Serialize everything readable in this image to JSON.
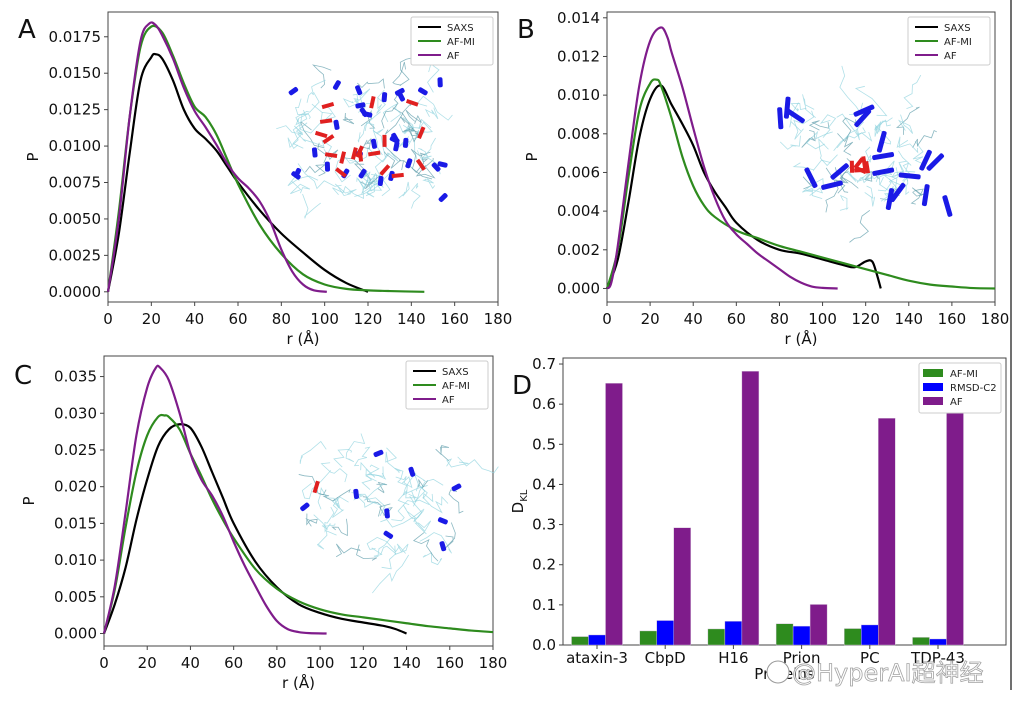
{
  "figure": {
    "watermark": "@HyperAI超神经",
    "colors": {
      "SAXS": "#000000",
      "AF-MI": "#2e8b1e",
      "RMSD-C2": "#0000ff",
      "AF": "#7f1c8b",
      "helix": "#1a1ae6",
      "sheet": "#e02020",
      "coil": "#8fd3de"
    }
  },
  "chart_data": [
    {
      "panel": "A",
      "type": "line",
      "xlabel": "r (Å)",
      "ylabel": "P",
      "xlim": [
        0,
        180
      ],
      "ylim": [
        -0.0007,
        0.0192
      ],
      "xticks": [
        0,
        20,
        40,
        60,
        80,
        100,
        120,
        140,
        160,
        180
      ],
      "yticks": [
        0.0,
        0.0025,
        0.005,
        0.0075,
        0.01,
        0.0125,
        0.015,
        0.0175
      ],
      "ytick_labels": [
        "0.0000",
        "0.0025",
        "0.0050",
        "0.0075",
        "0.0100",
        "0.0125",
        "0.0150",
        "0.0175"
      ],
      "legend": [
        "SAXS",
        "AF-MI",
        "AF"
      ],
      "legend_position": "top-right",
      "inset": "protein ensemble structure (compact, many helices and sheets)",
      "series": [
        {
          "name": "SAXS",
          "x": [
            0,
            5,
            10,
            15,
            20,
            22,
            25,
            30,
            35,
            40,
            45,
            50,
            55,
            60,
            70,
            80,
            90,
            100,
            110,
            120
          ],
          "y": [
            0,
            0.004,
            0.0095,
            0.0145,
            0.0161,
            0.0163,
            0.016,
            0.0145,
            0.0125,
            0.0112,
            0.0105,
            0.0097,
            0.0086,
            0.0075,
            0.0056,
            0.004,
            0.0027,
            0.0015,
            0.0006,
            0
          ]
        },
        {
          "name": "AF-MI",
          "x": [
            0,
            5,
            10,
            15,
            20,
            25,
            30,
            35,
            40,
            45,
            50,
            55,
            60,
            70,
            80,
            90,
            100,
            110,
            120,
            130,
            146
          ],
          "y": [
            0,
            0.0055,
            0.012,
            0.0168,
            0.0182,
            0.0178,
            0.0162,
            0.0143,
            0.0127,
            0.012,
            0.0108,
            0.0091,
            0.0074,
            0.0046,
            0.0026,
            0.0012,
            0.0005,
            0.0002,
            0.0001,
            5e-05,
            0
          ]
        },
        {
          "name": "AF",
          "x": [
            0,
            5,
            10,
            15,
            19,
            22,
            25,
            30,
            35,
            40,
            45,
            50,
            55,
            60,
            65,
            70,
            75,
            80,
            85,
            90,
            95,
            101
          ],
          "y": [
            0,
            0.005,
            0.012,
            0.0172,
            0.0184,
            0.0183,
            0.0176,
            0.016,
            0.014,
            0.0124,
            0.0113,
            0.0101,
            0.0088,
            0.0078,
            0.0071,
            0.0062,
            0.0048,
            0.0029,
            0.0014,
            0.0005,
            0.0001,
            0
          ]
        }
      ]
    },
    {
      "panel": "B",
      "type": "line",
      "xlabel": "r (Å)",
      "ylabel": "P",
      "xlim": [
        0,
        180
      ],
      "ylim": [
        -0.0007,
        0.0143
      ],
      "xticks": [
        0,
        20,
        40,
        60,
        80,
        100,
        120,
        140,
        160,
        180
      ],
      "yticks": [
        0.0,
        0.002,
        0.004,
        0.006,
        0.008,
        0.01,
        0.012,
        0.014
      ],
      "ytick_labels": [
        "0.000",
        "0.002",
        "0.004",
        "0.006",
        "0.008",
        "0.010",
        "0.012",
        "0.014"
      ],
      "legend": [
        "SAXS",
        "AF-MI",
        "AF"
      ],
      "legend_position": "top-right",
      "inset": "protein ensemble structure (folded core with dispersed helices)",
      "series": [
        {
          "name": "SAXS",
          "x": [
            0,
            5,
            10,
            15,
            20,
            25,
            30,
            35,
            40,
            45,
            50,
            55,
            60,
            70,
            80,
            90,
            100,
            110,
            115,
            120,
            123,
            125,
            127
          ],
          "y": [
            0,
            0.0015,
            0.0045,
            0.0078,
            0.0098,
            0.0105,
            0.0095,
            0.0085,
            0.0074,
            0.006,
            0.005,
            0.0042,
            0.0034,
            0.0025,
            0.002,
            0.0018,
            0.0015,
            0.0012,
            0.0011,
            0.0014,
            0.0014,
            0.0008,
            0
          ]
        },
        {
          "name": "AF-MI",
          "x": [
            0,
            5,
            10,
            15,
            20,
            23,
            25,
            30,
            35,
            40,
            45,
            50,
            60,
            70,
            80,
            90,
            100,
            110,
            120,
            130,
            140,
            150,
            160,
            170,
            180
          ],
          "y": [
            0,
            0.002,
            0.0058,
            0.0092,
            0.0106,
            0.0108,
            0.0105,
            0.0088,
            0.0068,
            0.0053,
            0.0043,
            0.0037,
            0.003,
            0.0026,
            0.0022,
            0.0019,
            0.0016,
            0.0013,
            0.001,
            0.0007,
            0.0004,
            0.0002,
            0.0001,
            2e-05,
            0
          ]
        },
        {
          "name": "AF",
          "x": [
            0,
            2,
            5,
            10,
            15,
            20,
            25,
            28,
            30,
            35,
            40,
            45,
            50,
            55,
            60,
            65,
            70,
            75,
            80,
            85,
            90,
            95,
            100,
            107
          ],
          "y": [
            0,
            0.0003,
            0.0022,
            0.0065,
            0.0105,
            0.0128,
            0.0135,
            0.013,
            0.0122,
            0.0104,
            0.0083,
            0.0063,
            0.0047,
            0.0035,
            0.0028,
            0.0023,
            0.0018,
            0.0014,
            0.001,
            0.0006,
            0.0003,
            0.0001,
            3e-05,
            0
          ]
        }
      ]
    },
    {
      "panel": "C",
      "type": "line",
      "xlabel": "r (Å)",
      "ylabel": "P",
      "xlim": [
        0,
        180
      ],
      "ylim": [
        -0.0017,
        0.0378
      ],
      "xticks": [
        0,
        20,
        40,
        60,
        80,
        100,
        120,
        140,
        160,
        180
      ],
      "yticks": [
        0.0,
        0.005,
        0.01,
        0.015,
        0.02,
        0.025,
        0.03,
        0.035
      ],
      "ytick_labels": [
        "0.000",
        "0.005",
        "0.010",
        "0.015",
        "0.020",
        "0.025",
        "0.030",
        "0.035"
      ],
      "legend": [
        "SAXS",
        "AF-MI",
        "AF"
      ],
      "legend_position": "top-right",
      "inset": "protein ensemble structure (mostly disordered coils with few helices)",
      "series": [
        {
          "name": "SAXS",
          "x": [
            0,
            5,
            10,
            15,
            20,
            25,
            30,
            35,
            40,
            45,
            50,
            55,
            60,
            70,
            80,
            90,
            100,
            110,
            120,
            130,
            135,
            140
          ],
          "y": [
            0,
            0.004,
            0.009,
            0.0155,
            0.021,
            0.0255,
            0.0278,
            0.0285,
            0.028,
            0.0255,
            0.022,
            0.0185,
            0.015,
            0.0098,
            0.0063,
            0.004,
            0.0028,
            0.002,
            0.0015,
            0.001,
            0.0006,
            0
          ]
        },
        {
          "name": "AF-MI",
          "x": [
            0,
            5,
            10,
            15,
            20,
            25,
            28,
            30,
            35,
            40,
            45,
            50,
            55,
            60,
            70,
            80,
            90,
            100,
            110,
            120,
            130,
            140,
            150,
            160,
            170,
            180
          ],
          "y": [
            0,
            0.006,
            0.0145,
            0.022,
            0.027,
            0.0295,
            0.0297,
            0.0295,
            0.0278,
            0.0245,
            0.0215,
            0.0183,
            0.0155,
            0.013,
            0.0088,
            0.0061,
            0.0044,
            0.0033,
            0.0026,
            0.0022,
            0.0018,
            0.0014,
            0.001,
            0.0007,
            0.0004,
            0.0002
          ]
        },
        {
          "name": "AF",
          "x": [
            0,
            5,
            10,
            15,
            20,
            24,
            26,
            30,
            35,
            40,
            45,
            50,
            55,
            60,
            65,
            70,
            75,
            80,
            85,
            90,
            95,
            103
          ],
          "y": [
            0,
            0.0065,
            0.0165,
            0.027,
            0.0335,
            0.0362,
            0.0362,
            0.0345,
            0.03,
            0.0245,
            0.021,
            0.0188,
            0.016,
            0.0125,
            0.0093,
            0.0065,
            0.0038,
            0.0017,
            0.0006,
            0.0002,
            5e-05,
            0
          ]
        }
      ]
    },
    {
      "panel": "D",
      "type": "bar",
      "xlabel": "Proteins",
      "ylabel": "D_KL",
      "ylabel_main": "D",
      "ylabel_sub": "KL",
      "ylim": [
        0,
        0.715
      ],
      "yticks": [
        0.0,
        0.1,
        0.2,
        0.3,
        0.4,
        0.5,
        0.6,
        0.7
      ],
      "ytick_labels": [
        "0.0",
        "0.1",
        "0.2",
        "0.3",
        "0.4",
        "0.5",
        "0.6",
        "0.7"
      ],
      "categories": [
        "ataxin-3",
        "CbpD",
        "H16",
        "Prion",
        "PC",
        "TDP-43"
      ],
      "legend": [
        "AF-MI",
        "RMSD-C2",
        "AF"
      ],
      "legend_position": "top-right",
      "series": [
        {
          "name": "AF-MI",
          "values": [
            0.021,
            0.035,
            0.04,
            0.053,
            0.041,
            0.019
          ]
        },
        {
          "name": "RMSD-C2",
          "values": [
            0.025,
            0.061,
            0.059,
            0.047,
            0.05,
            0.015
          ]
        },
        {
          "name": "AF",
          "values": [
            0.652,
            0.292,
            0.682,
            0.101,
            0.565,
            0.582
          ]
        }
      ]
    }
  ]
}
